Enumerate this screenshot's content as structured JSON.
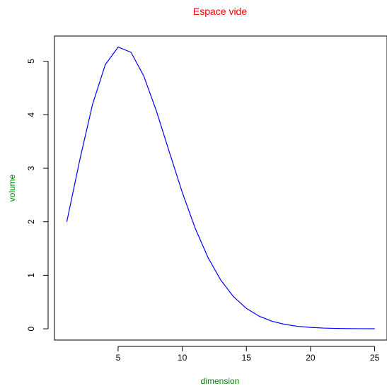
{
  "chart_data": {
    "type": "line",
    "title": "Espace vide",
    "xlabel": "dimension",
    "ylabel": "volume",
    "xlim": [
      0.04,
      25.96
    ],
    "ylim": [
      -0.21,
      5.47
    ],
    "xticks": [
      5,
      10,
      15,
      20,
      25
    ],
    "yticks": [
      0,
      1,
      2,
      3,
      4,
      5
    ],
    "grid": false,
    "series": [
      {
        "color": "#0000ff",
        "x": [
          1,
          2,
          3,
          4,
          5,
          6,
          7,
          8,
          9,
          10,
          11,
          12,
          13,
          14,
          15,
          16,
          17,
          18,
          19,
          20,
          21,
          22,
          23,
          24,
          25
        ],
        "values": [
          2.0,
          3.14159,
          4.18879,
          4.9348,
          5.26379,
          5.16771,
          4.72477,
          4.05871,
          3.29851,
          2.55016,
          1.8841,
          1.33526,
          0.91063,
          0.59926,
          0.38144,
          0.23533,
          0.14098,
          0.08215,
          0.04662,
          0.02581,
          0.01395,
          0.00737,
          0.00381,
          0.00193,
          0.00096
        ]
      }
    ],
    "colors": {
      "title": "#ff0000",
      "axis_labels": "#008000",
      "line": "#0000ff",
      "axes": "#000000"
    }
  }
}
